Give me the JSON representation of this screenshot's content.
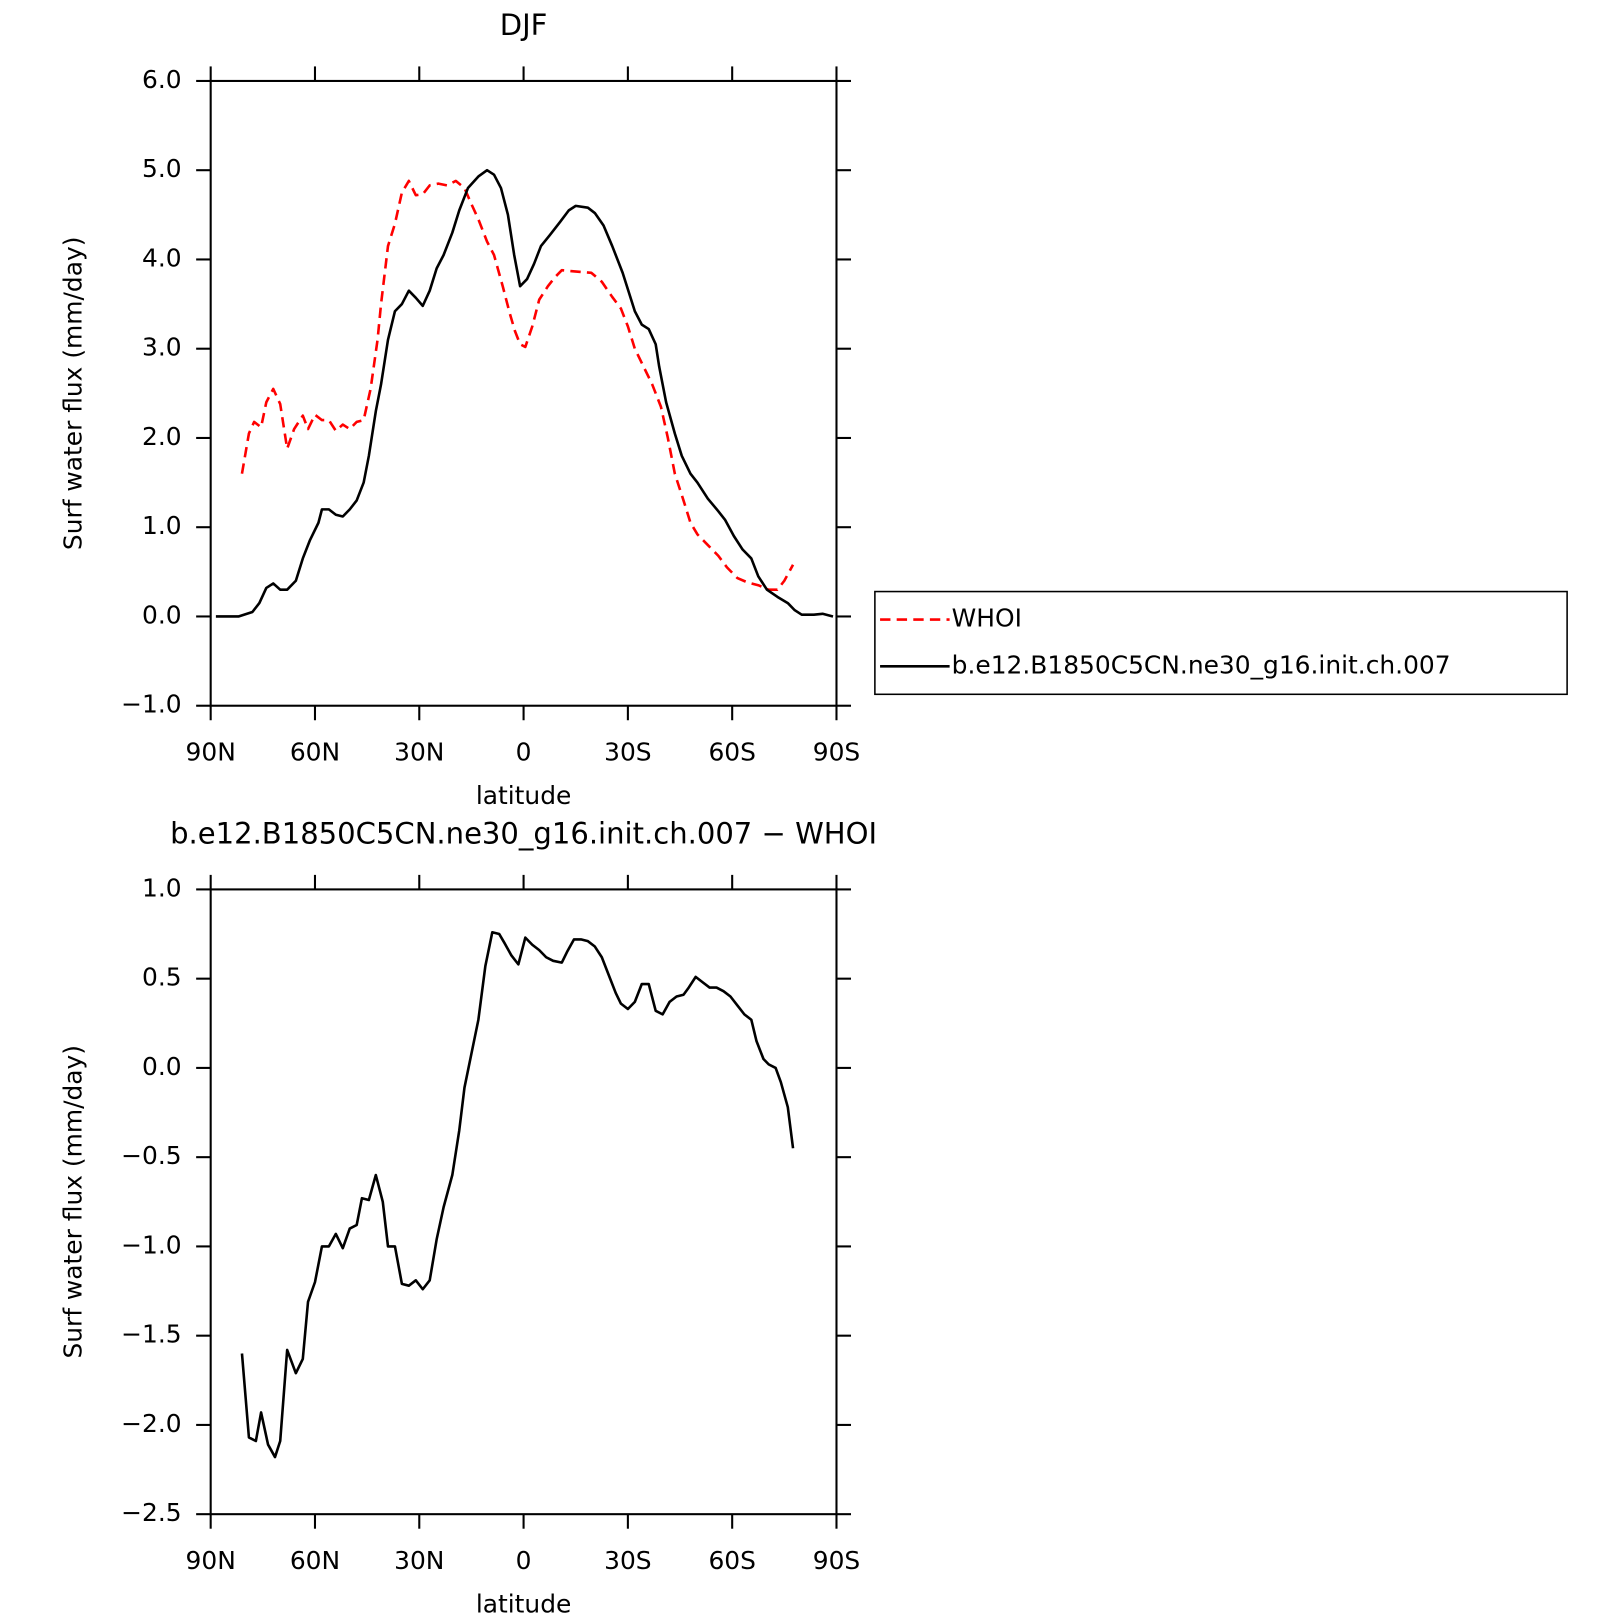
{
  "chart_data": [
    {
      "type": "line",
      "title": "DJF",
      "xlabel": "latitude",
      "ylabel": "Surf water flux (mm/day)",
      "xlim": [
        90,
        -90
      ],
      "ylim": [
        -1,
        6
      ],
      "xticks": [
        {
          "value": 90,
          "label": "90N"
        },
        {
          "value": 60,
          "label": "60N"
        },
        {
          "value": 30,
          "label": "30N"
        },
        0,
        {
          "value": -30,
          "label": "30S"
        },
        {
          "value": -60,
          "label": "60S"
        },
        {
          "value": -90,
          "label": "90S"
        }
      ],
      "yticks": [
        {
          "value": -1,
          "label": "−1.0"
        },
        {
          "value": 0,
          "label": "0.0"
        },
        {
          "value": 1,
          "label": "1.0"
        },
        {
          "value": 2,
          "label": "2.0"
        },
        {
          "value": 3,
          "label": "3.0"
        },
        {
          "value": 4,
          "label": "4.0"
        },
        {
          "value": 5,
          "label": "5.0"
        },
        {
          "value": 6,
          "label": "6.0"
        }
      ],
      "legend": "right",
      "series": [
        {
          "name": "WHOI",
          "color": "#ff0000",
          "line_style": "dashed",
          "x": [
            81,
            79,
            77.5,
            75.5,
            74,
            72,
            70,
            68,
            66,
            63.5,
            62,
            60,
            58,
            56,
            54,
            52,
            50,
            48,
            46,
            44,
            42,
            41,
            39,
            37,
            35,
            33,
            31,
            29,
            27,
            24.5,
            22,
            19.5,
            17,
            15,
            13,
            10.5,
            8.5,
            6,
            4,
            2.5,
            1,
            -0.5,
            -2.5,
            -4.5,
            -7,
            -9,
            -11,
            -13.5,
            -16.5,
            -19.5,
            -22.5,
            -25.5,
            -28,
            -30,
            -32,
            -34.5,
            -37,
            -39.5,
            -41.5,
            -43.5,
            -46,
            -48,
            -50,
            -53,
            -56,
            -58.5,
            -61.5,
            -64.5,
            -67.5,
            -70.5,
            -73,
            -75,
            -77.5
          ],
          "values": [
            1.6,
            2.05,
            2.18,
            2.12,
            2.4,
            2.55,
            2.38,
            1.88,
            2.1,
            2.25,
            2.1,
            2.26,
            2.2,
            2.2,
            2.08,
            2.15,
            2.1,
            2.18,
            2.2,
            2.55,
            3.1,
            3.5,
            4.15,
            4.4,
            4.75,
            4.88,
            4.72,
            4.73,
            4.83,
            4.85,
            4.83,
            4.88,
            4.8,
            4.62,
            4.45,
            4.2,
            4.05,
            3.7,
            3.4,
            3.2,
            3.05,
            3.02,
            3.25,
            3.55,
            3.7,
            3.8,
            3.88,
            3.87,
            3.86,
            3.85,
            3.75,
            3.58,
            3.45,
            3.25,
            3.0,
            2.8,
            2.6,
            2.35,
            2.0,
            1.6,
            1.3,
            1.05,
            0.92,
            0.8,
            0.68,
            0.55,
            0.43,
            0.38,
            0.35,
            0.3,
            0.3,
            0.4,
            0.58
          ]
        },
        {
          "name": "b.e12.B1850C5CN.ne30_g16.init.ch.007",
          "color": "#000000",
          "line_style": "solid",
          "x": [
            88.5,
            82,
            78,
            76,
            74,
            72,
            70,
            68,
            65.5,
            63.5,
            61.5,
            59,
            58,
            56,
            54,
            52,
            50,
            48,
            46,
            44.5,
            42.5,
            41,
            39,
            37,
            35,
            33,
            31,
            29,
            27,
            25,
            23,
            20.5,
            18.5,
            16,
            13,
            10.5,
            8.5,
            6.5,
            4.5,
            2.7,
            1,
            -1,
            -3,
            -5,
            -7.5,
            -10.5,
            -13,
            -15,
            -18.5,
            -20.5,
            -23,
            -25.5,
            -28.5,
            -32,
            -34,
            -36,
            -38,
            -39,
            -41,
            -43.5,
            -45.5,
            -48,
            -50,
            -53,
            -56,
            -58,
            -60.5,
            -63,
            -65.5,
            -67.5,
            -70,
            -73,
            -76,
            -78,
            -80,
            -83.5,
            -86,
            -89
          ],
          "values": [
            0,
            0,
            0.05,
            0.15,
            0.32,
            0.37,
            0.3,
            0.3,
            0.4,
            0.65,
            0.85,
            1.05,
            1.2,
            1.2,
            1.14,
            1.12,
            1.2,
            1.3,
            1.5,
            1.8,
            2.3,
            2.6,
            3.1,
            3.42,
            3.5,
            3.65,
            3.57,
            3.48,
            3.65,
            3.9,
            4.05,
            4.3,
            4.55,
            4.8,
            4.93,
            5.0,
            4.95,
            4.8,
            4.5,
            4.05,
            3.7,
            3.78,
            3.95,
            4.15,
            4.27,
            4.42,
            4.55,
            4.6,
            4.58,
            4.52,
            4.38,
            4.15,
            3.85,
            3.42,
            3.27,
            3.22,
            3.05,
            2.8,
            2.4,
            2.05,
            1.8,
            1.6,
            1.5,
            1.32,
            1.18,
            1.08,
            0.9,
            0.75,
            0.65,
            0.45,
            0.3,
            0.22,
            0.15,
            0.07,
            0.02,
            0.02,
            0.03,
            0
          ]
        }
      ]
    },
    {
      "type": "line",
      "title": "b.e12.B1850C5CN.ne30_g16.init.ch.007 − WHOI",
      "xlabel": "latitude",
      "ylabel": "Surf water flux (mm/day)",
      "xlim": [
        90,
        -90
      ],
      "ylim": [
        -2.5,
        1
      ],
      "xticks": [
        {
          "value": 90,
          "label": "90N"
        },
        {
          "value": 60,
          "label": "60N"
        },
        {
          "value": 30,
          "label": "30N"
        },
        0,
        {
          "value": -30,
          "label": "30S"
        },
        {
          "value": -60,
          "label": "60S"
        },
        {
          "value": -90,
          "label": "90S"
        }
      ],
      "yticks": [
        {
          "value": -2.5,
          "label": "−2.5"
        },
        {
          "value": -2,
          "label": "−2.0"
        },
        {
          "value": -1.5,
          "label": "−1.5"
        },
        {
          "value": -1,
          "label": "−1.0"
        },
        {
          "value": -0.5,
          "label": "−0.5"
        },
        {
          "value": 0,
          "label": "0.0"
        },
        {
          "value": 0.5,
          "label": "0.5"
        },
        {
          "value": 1,
          "label": "1.0"
        }
      ],
      "series": [
        {
          "color": "#000000",
          "line_style": "solid",
          "x": [
            81,
            79,
            77,
            75.5,
            73.5,
            71.5,
            70,
            68,
            65.5,
            63.5,
            62,
            60,
            58,
            56,
            54,
            52,
            50,
            48,
            46.5,
            44.5,
            42.5,
            40.5,
            39,
            37,
            35,
            33,
            31,
            29,
            27,
            25,
            23,
            20.5,
            18.5,
            17,
            15,
            13,
            11,
            9,
            7,
            5.5,
            3.5,
            1.5,
            -0.5,
            -2.5,
            -4.5,
            -6.5,
            -8.5,
            -11,
            -12.5,
            -14.5,
            -16.5,
            -18.5,
            -20.5,
            -22.5,
            -24.5,
            -26.5,
            -28,
            -30,
            -32,
            -34,
            -36,
            -38,
            -40,
            -42,
            -44,
            -46,
            -47.5,
            -49.5,
            -51.5,
            -53.5,
            -55.5,
            -57.5,
            -59.5,
            -61.5,
            -63.5,
            -65.5,
            -67,
            -69,
            -70.5,
            -72.5,
            -74,
            -76,
            -77.5
          ],
          "values": [
            -1.6,
            -2.07,
            -2.09,
            -1.93,
            -2.11,
            -2.18,
            -2.09,
            -1.58,
            -1.71,
            -1.63,
            -1.31,
            -1.2,
            -1.0,
            -1.0,
            -0.93,
            -1.01,
            -0.9,
            -0.88,
            -0.73,
            -0.74,
            -0.6,
            -0.75,
            -1.0,
            -1.0,
            -1.21,
            -1.22,
            -1.19,
            -1.24,
            -1.19,
            -0.96,
            -0.78,
            -0.6,
            -0.35,
            -0.11,
            0.08,
            0.27,
            0.57,
            0.76,
            0.75,
            0.7,
            0.63,
            0.58,
            0.73,
            0.69,
            0.66,
            0.62,
            0.6,
            0.59,
            0.65,
            0.72,
            0.72,
            0.71,
            0.68,
            0.62,
            0.52,
            0.42,
            0.36,
            0.33,
            0.37,
            0.47,
            0.47,
            0.32,
            0.3,
            0.37,
            0.4,
            0.41,
            0.45,
            0.51,
            0.48,
            0.45,
            0.45,
            0.43,
            0.4,
            0.35,
            0.3,
            0.27,
            0.15,
            0.05,
            0.02,
            0.0,
            -0.08,
            -0.22,
            -0.45
          ]
        }
      ]
    }
  ]
}
